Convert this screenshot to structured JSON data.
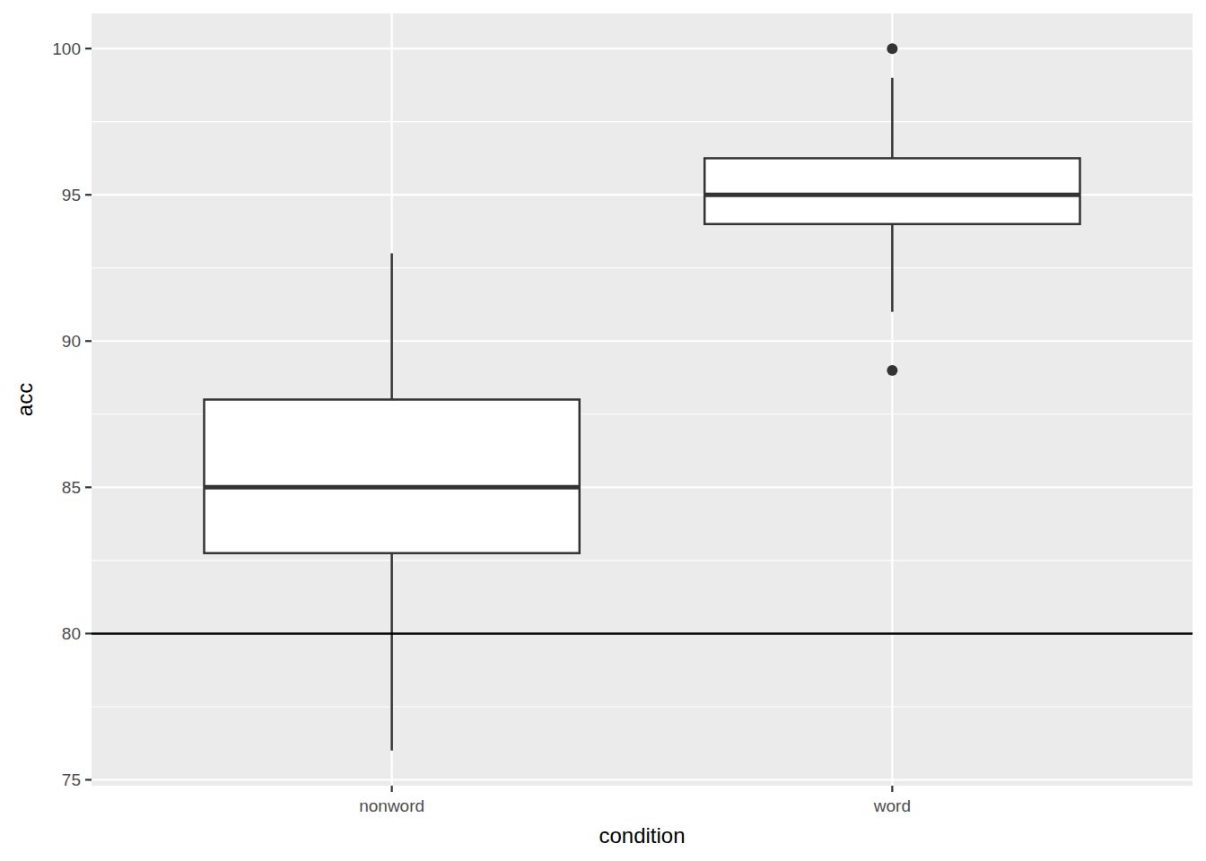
{
  "chart_data": {
    "type": "box",
    "x_label": "condition",
    "y_label": "acc",
    "categories": [
      "nonword",
      "word"
    ],
    "boxes": [
      {
        "min": 76,
        "q1": 82.75,
        "median": 85,
        "q3": 88,
        "max": 93,
        "outliers": []
      },
      {
        "min": 91,
        "q1": 94,
        "median": 95,
        "q3": 96.25,
        "max": 99,
        "outliers": [
          100,
          89
        ]
      }
    ],
    "hline": 80,
    "ylim": [
      74.8,
      101.2
    ],
    "yticks": [
      75,
      80,
      85,
      90,
      95,
      100
    ],
    "grid": true
  }
}
